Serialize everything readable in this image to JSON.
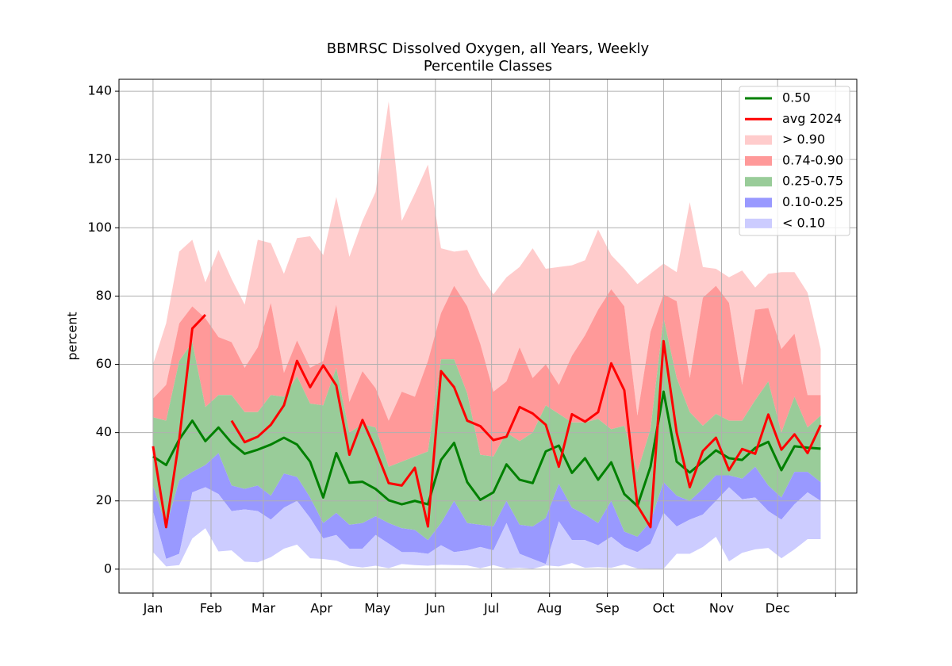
{
  "chart_data": {
    "type": "percentile_bands",
    "title": [
      "BBMRSC Dissolved Oxygen, all Years, Weekly",
      "Percentile Classes"
    ],
    "y_label": "percent",
    "x": [
      0,
      1,
      2,
      3,
      4,
      5,
      6,
      7,
      8,
      9,
      10,
      11,
      12,
      13,
      14,
      15,
      16,
      17,
      18,
      19,
      20,
      21,
      22,
      23,
      24,
      25,
      26,
      27,
      28,
      29,
      30,
      31,
      32,
      33,
      34,
      35,
      36,
      37,
      38,
      39,
      40,
      41,
      42,
      43,
      44,
      45,
      46,
      47,
      48,
      49,
      50,
      51
    ],
    "xlim": [
      -2.6,
      53.76
    ],
    "xticks": [
      {
        "value": 0,
        "label": "Jan"
      },
      {
        "value": 4.43,
        "label": "Feb"
      },
      {
        "value": 8.43,
        "label": "Mar"
      },
      {
        "value": 12.86,
        "label": "Apr"
      },
      {
        "value": 17.14,
        "label": "May"
      },
      {
        "value": 21.57,
        "label": "Jun"
      },
      {
        "value": 25.86,
        "label": "Jul"
      },
      {
        "value": 30.29,
        "label": "Aug"
      },
      {
        "value": 34.71,
        "label": "Sep"
      },
      {
        "value": 39,
        "label": "Oct"
      },
      {
        "value": 43.43,
        "label": "Nov"
      },
      {
        "value": 47.71,
        "label": "Dec"
      },
      {
        "value": 52.14,
        "label": null
      }
    ],
    "ylim": [
      -7,
      143.5
    ],
    "yticks": [
      0,
      20,
      40,
      60,
      80,
      100,
      120,
      140
    ],
    "grid": true,
    "legend": "upper right",
    "series": [
      {
        "name": "0.50",
        "kind": "line",
        "color": "#008000",
        "values": [
          33,
          30.5,
          38,
          43.5,
          37.5,
          41.5,
          37,
          33.8,
          35,
          36.5,
          38.5,
          36.5,
          31.5,
          21,
          34,
          25.3,
          25.6,
          23.5,
          20.2,
          19,
          20,
          19,
          32,
          37,
          25.5,
          20.3,
          22.5,
          30.7,
          26.2,
          25.2,
          34.5,
          36.2,
          28.2,
          32.5,
          26.2,
          31.3,
          22,
          18.5,
          30,
          52,
          31.5,
          28.3,
          31.5,
          34.8,
          32.5,
          32,
          35.5,
          37.3,
          29,
          36,
          35.6,
          35.3
        ]
      },
      {
        "name": "avg 2024",
        "kind": "line",
        "color": "#ff0000",
        "values": [
          36,
          12.3,
          38,
          70.5,
          74.5,
          null,
          43.5,
          37.2,
          38.8,
          42.3,
          48,
          61,
          53.3,
          59.7,
          53.8,
          33.5,
          43.7,
          35,
          25.2,
          24.5,
          29.7,
          12.5,
          58,
          53.3,
          43.5,
          41.9,
          37.8,
          38.8,
          47.5,
          45.6,
          42.3,
          30,
          45.4,
          43.2,
          46,
          60.3,
          52.4,
          18.6,
          12.3,
          66.8,
          40,
          24,
          34.6,
          38.5,
          29,
          35.2,
          33.8,
          45.3,
          35,
          39.5,
          34,
          42.2
        ]
      },
      {
        "name": "> 0.90",
        "kind": "band",
        "color": "#ffcccc",
        "values": [
          60,
          72,
          93,
          96.5,
          84,
          93.5,
          85,
          77.5,
          96.5,
          95.5,
          86.5,
          97,
          97.5,
          92,
          109,
          91.5,
          102,
          110.5,
          137,
          102,
          110,
          118.5,
          94,
          93,
          93.5,
          86,
          80.5,
          85.5,
          88.5,
          94,
          88,
          88.5,
          89,
          90.5,
          99.5,
          92,
          88,
          83.5,
          86.5,
          89.5,
          87,
          107.5,
          88.5,
          88,
          85.5,
          87.5,
          82.5,
          86.5,
          87,
          87,
          81,
          64.5
        ]
      },
      {
        "name": "0.74-0.90",
        "kind": "band",
        "color": "#ff9999",
        "values": [
          50,
          54,
          72,
          77,
          73.5,
          68,
          66.5,
          59,
          65,
          78,
          57.5,
          67,
          59,
          61,
          77.5,
          49,
          58,
          53,
          43.5,
          52,
          50.5,
          61,
          75,
          83,
          77,
          66,
          52,
          55,
          65,
          56,
          60,
          54,
          62.5,
          68.5,
          76,
          82,
          77,
          45,
          69.5,
          80.5,
          78.5,
          56,
          79.5,
          83,
          78,
          54,
          76,
          76.5,
          64.5,
          69,
          51,
          51
        ]
      },
      {
        "name": "0.25-0.75",
        "kind": "band",
        "color": "#99cc99",
        "values": [
          44.5,
          43.5,
          61,
          66.5,
          47.5,
          51,
          51,
          46,
          46,
          51,
          50.5,
          56.5,
          48.5,
          48,
          59,
          40,
          42.5,
          41.5,
          30,
          31.5,
          33,
          34.5,
          61.5,
          61.5,
          51.5,
          33.5,
          33,
          40,
          37.5,
          40,
          48,
          45.5,
          43,
          43,
          44,
          41,
          42,
          28.5,
          41,
          73.5,
          56,
          46,
          42,
          45.5,
          43.5,
          43.5,
          49.5,
          55,
          40,
          50.5,
          41.5,
          45
        ]
      },
      {
        "name": "0.10-0.25",
        "kind": "band",
        "color": "#9999ff",
        "values": [
          24.5,
          12.5,
          26,
          28.5,
          30.5,
          34,
          24.5,
          23.5,
          24.5,
          21.5,
          28,
          27,
          21,
          13.5,
          16.5,
          13,
          13.5,
          15.5,
          13.5,
          12,
          11.5,
          8.5,
          13.5,
          20,
          13.5,
          13,
          12.5,
          20,
          13,
          12.5,
          15,
          25,
          18,
          16,
          13.5,
          20,
          11,
          9.5,
          14,
          25.5,
          21.5,
          20,
          23.5,
          27.5,
          27.5,
          26.5,
          30,
          24.5,
          21,
          28.5,
          28.5,
          25.5
        ]
      },
      {
        "name": "< 0.10",
        "kind": "band",
        "color": "#ccccff",
        "values": [
          17,
          3,
          4.5,
          22.5,
          24,
          22,
          17,
          17.5,
          17,
          14.5,
          18,
          20,
          15,
          9,
          10,
          6,
          6,
          10,
          7.5,
          5,
          5,
          4.5,
          7,
          5,
          5.5,
          6.5,
          5.5,
          13.5,
          4.5,
          3,
          1.5,
          14,
          8.5,
          8.5,
          7,
          9.5,
          6.5,
          5,
          7.5,
          16.5,
          12.5,
          14.5,
          16,
          20,
          24,
          20.5,
          21,
          17,
          14.5,
          19,
          22.5,
          20
        ],
        "lower": [
          5,
          0.8,
          1.2,
          9,
          12,
          5.2,
          5.5,
          2.2,
          2,
          3.5,
          6,
          7.2,
          3.2,
          3,
          2.5,
          1,
          0.5,
          1,
          0.3,
          1.5,
          1.2,
          1,
          1.3,
          1.2,
          1.1,
          0.3,
          1.2,
          0.2,
          0.4,
          0.1,
          1.1,
          0.8,
          1.8,
          0.4,
          0.6,
          0.4,
          1.4,
          0.2,
          0.1,
          0.1,
          4.5,
          4.5,
          6.5,
          9.5,
          2.3,
          4.8,
          5.8,
          6.2,
          3.2,
          5.8,
          8.8,
          8.8
        ]
      }
    ]
  }
}
